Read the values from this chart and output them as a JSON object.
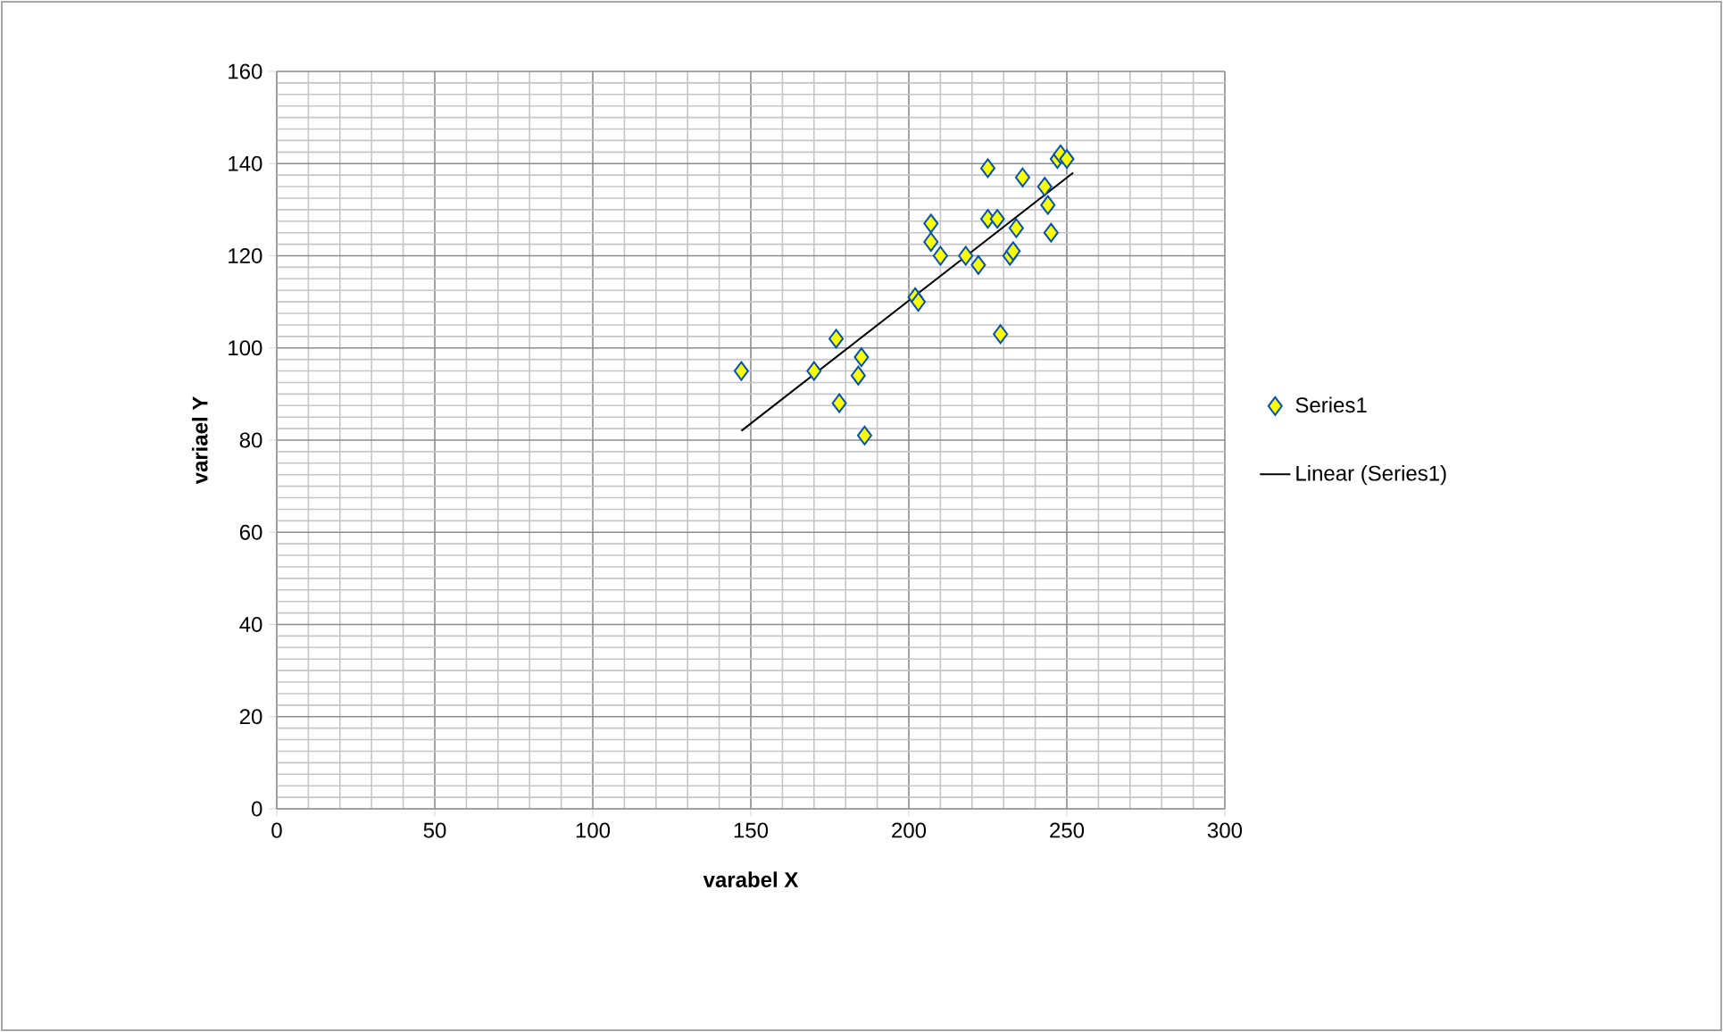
{
  "chart_data": {
    "type": "scatter",
    "xlabel": "varabel X",
    "ylabel": "variael  Y",
    "xlim": [
      0,
      300
    ],
    "ylim": [
      0,
      160
    ],
    "xticks": [
      0,
      50,
      100,
      150,
      200,
      250,
      300
    ],
    "yticks": [
      0,
      20,
      40,
      60,
      80,
      100,
      120,
      140,
      160
    ],
    "grid": true,
    "legend": "right",
    "series": [
      {
        "name": "Series1",
        "color": "#ffff00",
        "marker": "diamond",
        "x": [
          147,
          170,
          177,
          178,
          184,
          185,
          186,
          202,
          203,
          207,
          207,
          210,
          218,
          222,
          225,
          225,
          228,
          229,
          232,
          233,
          234,
          236,
          243,
          244,
          245,
          247,
          248,
          250
        ],
        "values": [
          95,
          95,
          102,
          88,
          94,
          98,
          81,
          111,
          110,
          123,
          127,
          120,
          120,
          118,
          139,
          128,
          128,
          103,
          120,
          121,
          126,
          137,
          135,
          131,
          125,
          141,
          142,
          141
        ]
      },
      {
        "name": "Linear (Series1)",
        "type": "line",
        "marker": "none",
        "color": "#000000",
        "x": [
          147,
          252
        ],
        "values": [
          82,
          138
        ]
      }
    ]
  }
}
